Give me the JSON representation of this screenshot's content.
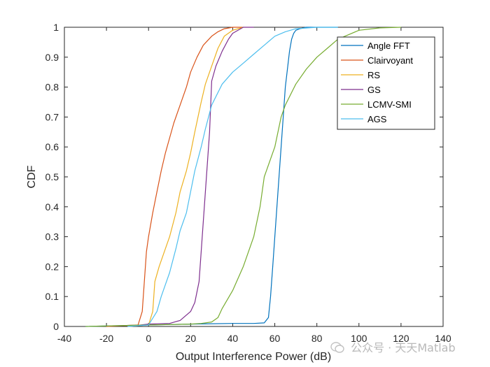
{
  "chart_data": {
    "type": "line",
    "title": "",
    "xlabel": "Output Interference Power (dB)",
    "ylabel": "CDF",
    "xlim": [
      -40,
      140
    ],
    "ylim": [
      0,
      1
    ],
    "xticks": [
      -40,
      -20,
      0,
      20,
      40,
      60,
      80,
      100,
      120,
      140
    ],
    "xtick_labels": [
      "-40",
      "-20",
      "0",
      "20",
      "40",
      "60",
      "80",
      "100",
      "120",
      "140"
    ],
    "yticks": [
      0,
      0.1,
      0.2,
      0.3,
      0.4,
      0.5,
      0.6,
      0.7,
      0.8,
      0.9,
      1
    ],
    "ytick_labels": [
      "0",
      "0.1",
      "0.2",
      "0.3",
      "0.4",
      "0.5",
      "0.6",
      "0.7",
      "0.8",
      "0.9",
      "1"
    ],
    "grid": false,
    "legend_position": "top-right",
    "series": [
      {
        "name": "Angle FFT",
        "color": "#0072BD",
        "x": [
          -30,
          0,
          20,
          40,
          50,
          55,
          57,
          58,
          59,
          60,
          61,
          62,
          63,
          64,
          65,
          66,
          67,
          68,
          69,
          70,
          72,
          75,
          80,
          85,
          90
        ],
        "y": [
          0,
          0.005,
          0.008,
          0.01,
          0.01,
          0.012,
          0.03,
          0.1,
          0.2,
          0.3,
          0.4,
          0.5,
          0.6,
          0.7,
          0.8,
          0.86,
          0.92,
          0.96,
          0.98,
          0.99,
          0.995,
          1,
          1,
          1,
          1
        ]
      },
      {
        "name": "Clairvoyant",
        "color": "#D95319",
        "x": [
          -20,
          -5,
          -3,
          -2,
          -1,
          0,
          2,
          4,
          6,
          8,
          10,
          12,
          15,
          18,
          20,
          23,
          26,
          30,
          33,
          36,
          40,
          45
        ],
        "y": [
          0,
          0.005,
          0.05,
          0.15,
          0.25,
          0.3,
          0.38,
          0.45,
          0.52,
          0.58,
          0.63,
          0.68,
          0.74,
          0.8,
          0.85,
          0.9,
          0.94,
          0.97,
          0.985,
          0.995,
          1,
          1
        ]
      },
      {
        "name": "RS",
        "color": "#EDB120",
        "x": [
          -10,
          0,
          2,
          3,
          5,
          8,
          10,
          13,
          15,
          18,
          20,
          22,
          25,
          27,
          30,
          33,
          36,
          40,
          45
        ],
        "y": [
          0,
          0.005,
          0.05,
          0.15,
          0.2,
          0.26,
          0.3,
          0.38,
          0.45,
          0.52,
          0.58,
          0.65,
          0.75,
          0.81,
          0.87,
          0.93,
          0.97,
          0.99,
          1
        ]
      },
      {
        "name": "GS",
        "color": "#7E2F8E",
        "x": [
          -10,
          0,
          10,
          15,
          20,
          22,
          24,
          25,
          26,
          27,
          28,
          29,
          30,
          32,
          35,
          38,
          40,
          45,
          50
        ],
        "y": [
          0,
          0.008,
          0.01,
          0.02,
          0.05,
          0.08,
          0.15,
          0.25,
          0.35,
          0.45,
          0.55,
          0.65,
          0.82,
          0.87,
          0.92,
          0.96,
          0.98,
          1,
          1
        ]
      },
      {
        "name": "LCMV-SMI",
        "color": "#77AC30",
        "x": [
          -30,
          0,
          20,
          25,
          30,
          33,
          35,
          40,
          45,
          50,
          53,
          55,
          60,
          63,
          65,
          70,
          75,
          80,
          85,
          90,
          95,
          100,
          110,
          120
        ],
        "y": [
          0,
          0.005,
          0.008,
          0.01,
          0.015,
          0.03,
          0.06,
          0.12,
          0.2,
          0.3,
          0.4,
          0.5,
          0.6,
          0.7,
          0.74,
          0.81,
          0.86,
          0.9,
          0.93,
          0.96,
          0.975,
          0.99,
          0.998,
          1
        ]
      },
      {
        "name": "AGS",
        "color": "#4DBEEE",
        "x": [
          -10,
          0,
          4,
          6,
          8,
          10,
          13,
          15,
          18,
          20,
          22,
          25,
          27,
          30,
          35,
          40,
          45,
          50,
          55,
          60,
          65,
          70,
          80,
          90
        ],
        "y": [
          0,
          0.005,
          0.05,
          0.1,
          0.14,
          0.18,
          0.26,
          0.32,
          0.38,
          0.45,
          0.52,
          0.6,
          0.66,
          0.74,
          0.81,
          0.85,
          0.88,
          0.91,
          0.94,
          0.97,
          0.985,
          0.995,
          1,
          1
        ]
      }
    ]
  },
  "watermark": {
    "text": "公众号 · 天天Matlab"
  }
}
